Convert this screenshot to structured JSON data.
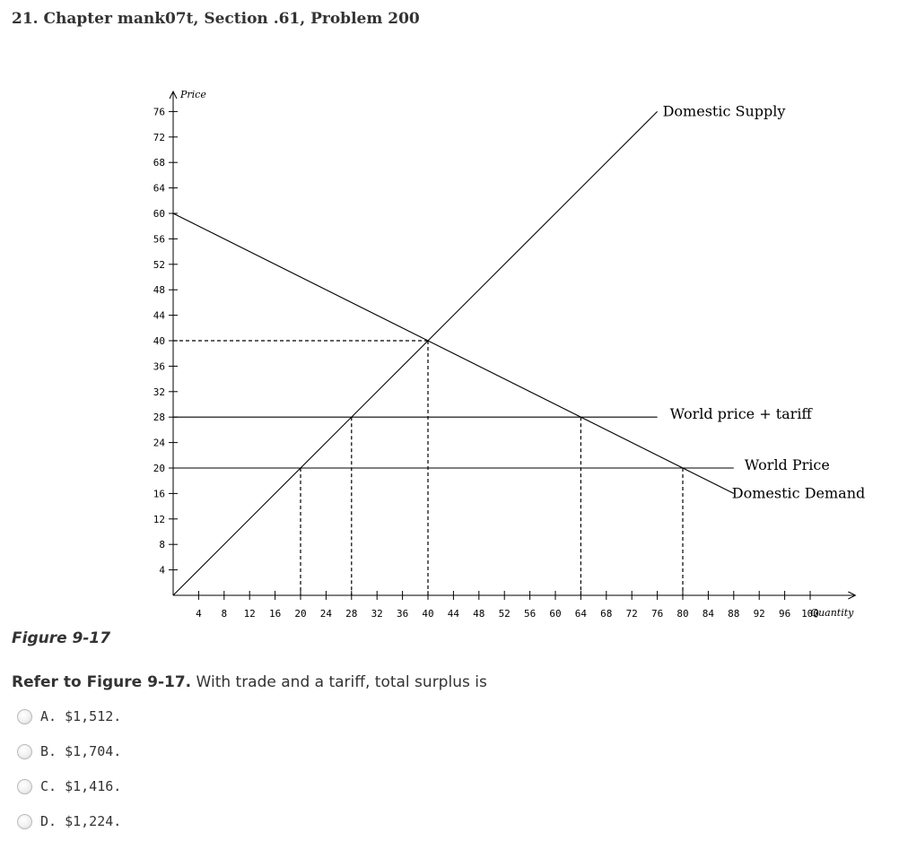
{
  "question": {
    "title": "21.  Chapter mank07t, Section .61, Problem 200",
    "figure_caption": "Figure 9-17",
    "prompt_bold": "Refer to Figure 9-17.",
    "prompt_text": " With trade and a tariff, total surplus is",
    "options": [
      {
        "letter": "A.",
        "value": "$1,512."
      },
      {
        "letter": "B.",
        "value": "$1,704."
      },
      {
        "letter": "C.",
        "value": "$1,416."
      },
      {
        "letter": "D.",
        "value": "$1,224."
      }
    ]
  },
  "chart_data": {
    "type": "line",
    "xlabel": "Quantity",
    "ylabel": "Price",
    "xlim": [
      0,
      104
    ],
    "ylim": [
      0,
      80
    ],
    "x_ticks": [
      4,
      8,
      12,
      16,
      20,
      24,
      28,
      32,
      36,
      40,
      44,
      48,
      52,
      56,
      60,
      64,
      68,
      72,
      76,
      80,
      84,
      88,
      92,
      96,
      100
    ],
    "y_ticks": [
      4,
      8,
      12,
      16,
      20,
      24,
      28,
      32,
      36,
      40,
      44,
      48,
      52,
      56,
      60,
      64,
      68,
      72,
      76
    ],
    "series": [
      {
        "name": "Domestic Supply",
        "x": [
          0,
          76
        ],
        "y": [
          0,
          76
        ]
      },
      {
        "name": "Domestic Demand",
        "x": [
          0,
          88
        ],
        "y": [
          60,
          16
        ]
      },
      {
        "name": "World price + tariff",
        "x": [
          0,
          76
        ],
        "y": [
          28,
          28
        ]
      },
      {
        "name": "World Price",
        "x": [
          0,
          88
        ],
        "y": [
          20,
          20
        ]
      }
    ],
    "dashed_guides": {
      "horizontal": [
        {
          "y": 40,
          "x_end": 40
        }
      ],
      "vertical": [
        {
          "x": 20,
          "y_end": 20
        },
        {
          "x": 28,
          "y_end": 28
        },
        {
          "x": 40,
          "y_end": 40
        },
        {
          "x": 64,
          "y_end": 28
        },
        {
          "x": 80,
          "y_end": 20
        }
      ]
    }
  }
}
